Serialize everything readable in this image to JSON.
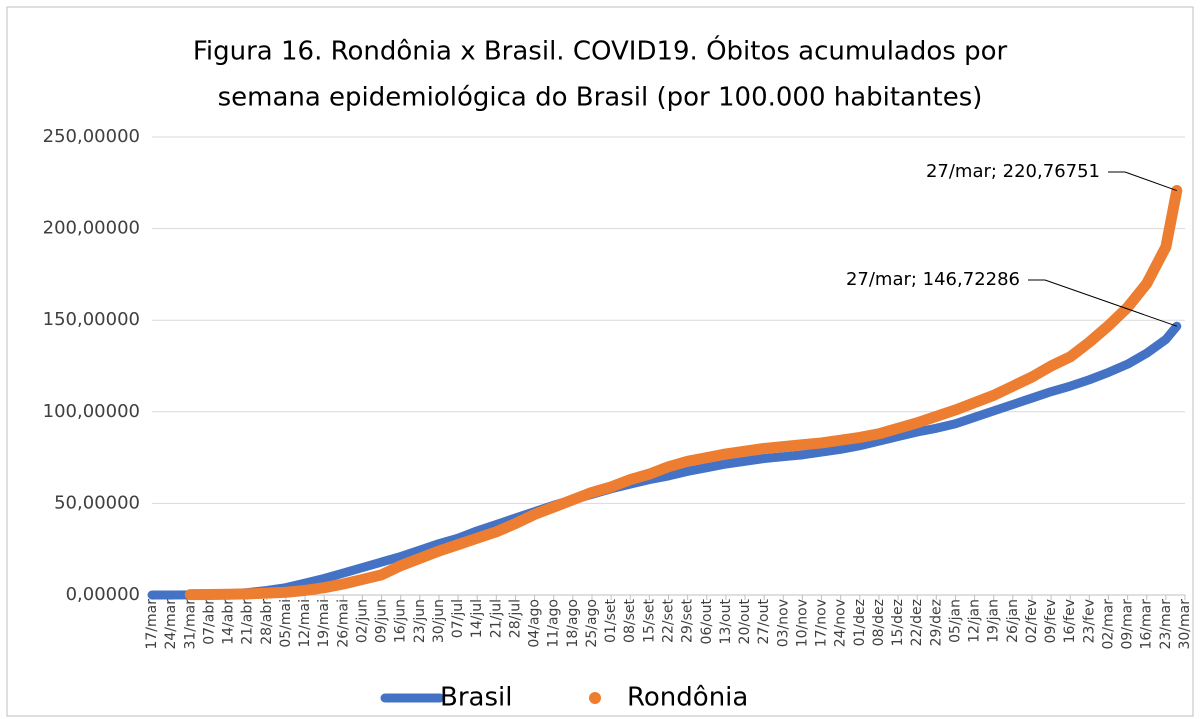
{
  "chart_data": {
    "type": "line",
    "title": [
      "Figura 16. Rondônia x Brasil. COVID19. Óbitos acumulados por",
      "semana epidemiológica do Brasil (por 100.000 habitantes)"
    ],
    "x": [
      0,
      7,
      14,
      21,
      28,
      35,
      42,
      49,
      56,
      63,
      70,
      77,
      84,
      91,
      98,
      105,
      112,
      119,
      126,
      133,
      140,
      147,
      154,
      161,
      168,
      175,
      182,
      189,
      196,
      203,
      210,
      217,
      224,
      231,
      238,
      245,
      252,
      259,
      266,
      273,
      280,
      287,
      294,
      301,
      308,
      315,
      322,
      329,
      336,
      343,
      350,
      357,
      364,
      371,
      375
    ],
    "xlim": [
      0,
      378
    ],
    "xticks": [
      {
        "value": 0,
        "label": "17/mar"
      },
      {
        "value": 7,
        "label": "24/mar"
      },
      {
        "value": 14,
        "label": "31/mar"
      },
      {
        "value": 21,
        "label": "07/abr"
      },
      {
        "value": 28,
        "label": "14/abr"
      },
      {
        "value": 35,
        "label": "21/abr"
      },
      {
        "value": 42,
        "label": "28/abr"
      },
      {
        "value": 49,
        "label": "05/mai"
      },
      {
        "value": 56,
        "label": "12/mai"
      },
      {
        "value": 63,
        "label": "19/mai"
      },
      {
        "value": 70,
        "label": "26/mai"
      },
      {
        "value": 77,
        "label": "02/jun"
      },
      {
        "value": 84,
        "label": "09/jun"
      },
      {
        "value": 91,
        "label": "16/jun"
      },
      {
        "value": 98,
        "label": "23/jun"
      },
      {
        "value": 105,
        "label": "30/jun"
      },
      {
        "value": 112,
        "label": "07/jul"
      },
      {
        "value": 119,
        "label": "14/jul"
      },
      {
        "value": 126,
        "label": "21/jul"
      },
      {
        "value": 133,
        "label": "28/jul"
      },
      {
        "value": 140,
        "label": "04/ago"
      },
      {
        "value": 147,
        "label": "11/ago"
      },
      {
        "value": 154,
        "label": "18/ago"
      },
      {
        "value": 161,
        "label": "25/ago"
      },
      {
        "value": 168,
        "label": "01/set"
      },
      {
        "value": 175,
        "label": "08/set"
      },
      {
        "value": 182,
        "label": "15/set"
      },
      {
        "value": 189,
        "label": "22/set"
      },
      {
        "value": 196,
        "label": "29/set"
      },
      {
        "value": 203,
        "label": "06/out"
      },
      {
        "value": 210,
        "label": "13/out"
      },
      {
        "value": 217,
        "label": "20/out"
      },
      {
        "value": 224,
        "label": "27/out"
      },
      {
        "value": 231,
        "label": "03/nov"
      },
      {
        "value": 238,
        "label": "10/nov"
      },
      {
        "value": 245,
        "label": "17/nov"
      },
      {
        "value": 252,
        "label": "24/nov"
      },
      {
        "value": 259,
        "label": "01/dez"
      },
      {
        "value": 266,
        "label": "08/dez"
      },
      {
        "value": 273,
        "label": "15/dez"
      },
      {
        "value": 280,
        "label": "22/dez"
      },
      {
        "value": 287,
        "label": "29/dez"
      },
      {
        "value": 294,
        "label": "05/jan"
      },
      {
        "value": 301,
        "label": "12/jan"
      },
      {
        "value": 308,
        "label": "19/jan"
      },
      {
        "value": 315,
        "label": "26/jan"
      },
      {
        "value": 322,
        "label": "02/fev"
      },
      {
        "value": 329,
        "label": "09/fev"
      },
      {
        "value": 336,
        "label": "16/fev"
      },
      {
        "value": 343,
        "label": "23/fev"
      },
      {
        "value": 350,
        "label": "02/mar"
      },
      {
        "value": 357,
        "label": "09/mar"
      },
      {
        "value": 364,
        "label": "16/mar"
      },
      {
        "value": 371,
        "label": "23/mar"
      },
      {
        "value": 378,
        "label": "30/mar"
      }
    ],
    "ylim": [
      0,
      250
    ],
    "yticks": [
      {
        "value": 0,
        "label": "0,00000"
      },
      {
        "value": 50,
        "label": "50,00000"
      },
      {
        "value": 100,
        "label": "100,00000"
      },
      {
        "value": 150,
        "label": "150,00000"
      },
      {
        "value": 200,
        "label": "200,00000"
      },
      {
        "value": 250,
        "label": "250,00000"
      }
    ],
    "grid": true,
    "legend": "bottom",
    "series": [
      {
        "name": "Brasil",
        "color": "#4472c4",
        "values": [
          0,
          0,
          0.1,
          0.3,
          0.7,
          1.3,
          2.5,
          4,
          6.5,
          9,
          12,
          15,
          18,
          21,
          24.5,
          28,
          31,
          35,
          38.5,
          42,
          45.5,
          49,
          52,
          55,
          58,
          60.5,
          63,
          65,
          67.5,
          69.5,
          71.5,
          73,
          74.5,
          75.5,
          76.5,
          78,
          79.5,
          81.5,
          84,
          86.5,
          89,
          91,
          93.5,
          97,
          100.5,
          104,
          107.5,
          111,
          114,
          117.5,
          121.5,
          126,
          132,
          139.5,
          146.72286
        ],
        "value_labels": [
          null,
          null,
          null,
          null,
          null,
          null,
          null,
          null,
          null,
          null,
          null,
          null,
          null,
          null,
          null,
          null,
          null,
          null,
          null,
          null,
          null,
          null,
          null,
          null,
          null,
          null,
          null,
          null,
          null,
          null,
          null,
          null,
          null,
          null,
          null,
          null,
          null,
          null,
          null,
          null,
          null,
          null,
          null,
          null,
          null,
          null,
          null,
          null,
          null,
          null,
          null,
          null,
          null,
          null,
          "27/mar; 146,72286"
        ]
      },
      {
        "name": "Rondônia",
        "color": "#ed7d31",
        "values": [
          null,
          null,
          0.2,
          0.3,
          0.4,
          0.6,
          1,
          1.5,
          2.5,
          4,
          6,
          8.5,
          11,
          16,
          20,
          24,
          27.5,
          31,
          34.5,
          39,
          44,
          48,
          52,
          56,
          59,
          63,
          66,
          70,
          73,
          75,
          77,
          78.5,
          80,
          81,
          82,
          83,
          84.5,
          86,
          88,
          91,
          94,
          97.5,
          101,
          105,
          109,
          114,
          119,
          125,
          130,
          138,
          147,
          157,
          170,
          190,
          220.76751
        ],
        "value_labels": [
          null,
          null,
          null,
          null,
          null,
          null,
          null,
          null,
          null,
          null,
          null,
          null,
          null,
          null,
          null,
          null,
          null,
          null,
          null,
          null,
          null,
          null,
          null,
          null,
          null,
          null,
          null,
          null,
          null,
          null,
          null,
          null,
          null,
          null,
          null,
          null,
          null,
          null,
          null,
          null,
          null,
          null,
          null,
          null,
          null,
          null,
          null,
          null,
          null,
          null,
          null,
          null,
          null,
          null,
          "27/mar; 220,76751"
        ]
      }
    ]
  }
}
